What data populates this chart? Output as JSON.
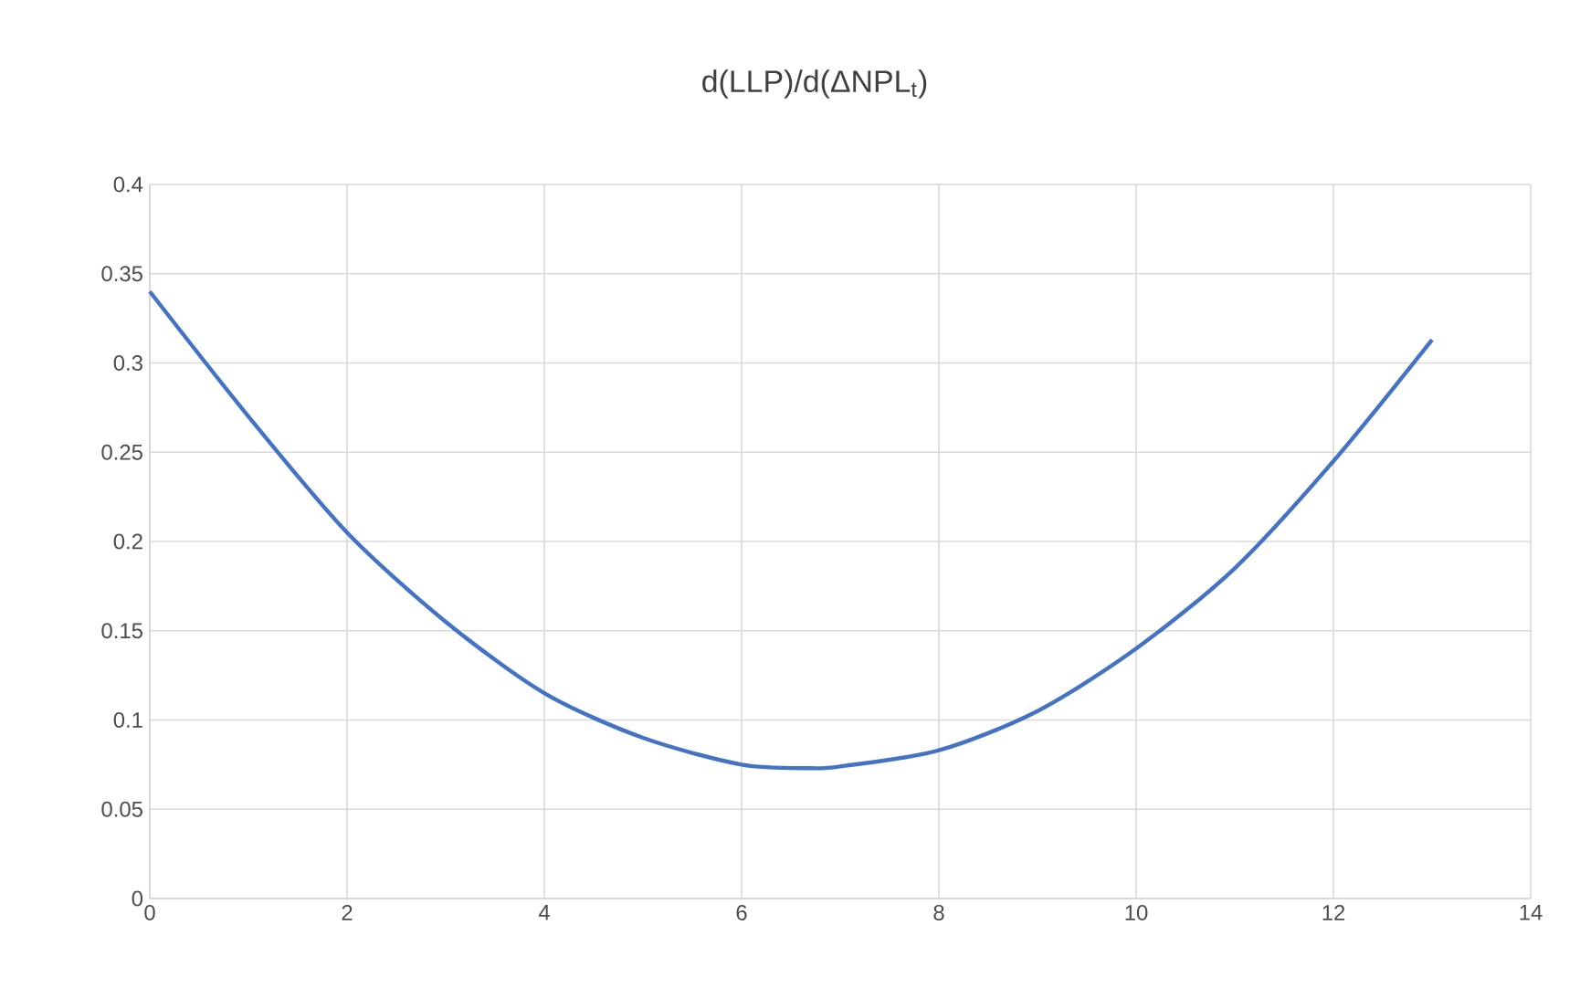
{
  "chart_data": {
    "type": "line",
    "title": "d(LLP)/d(ΔNPL$_{t}$)",
    "x": [
      0,
      1,
      2,
      3,
      4,
      5,
      6,
      6.7,
      7,
      8,
      9,
      10,
      11,
      12,
      13
    ],
    "series": [
      {
        "color": "#4472c4",
        "values": [
          0.34,
          0.27,
          0.205,
          0.155,
          0.115,
          0.09,
          0.075,
          0.073,
          0.074,
          0.083,
          0.105,
          0.14,
          0.185,
          0.245,
          0.313
        ]
      }
    ],
    "xlim": [
      0,
      14
    ],
    "xticks": [
      0,
      2,
      4,
      6,
      8,
      10,
      12,
      14
    ],
    "ylim": [
      0,
      0.4
    ],
    "yticks": [
      0,
      0.05,
      0.1,
      0.15,
      0.2,
      0.25,
      0.3,
      0.35,
      0.4
    ],
    "grid": true,
    "marker": "none",
    "line_style": "solid"
  }
}
